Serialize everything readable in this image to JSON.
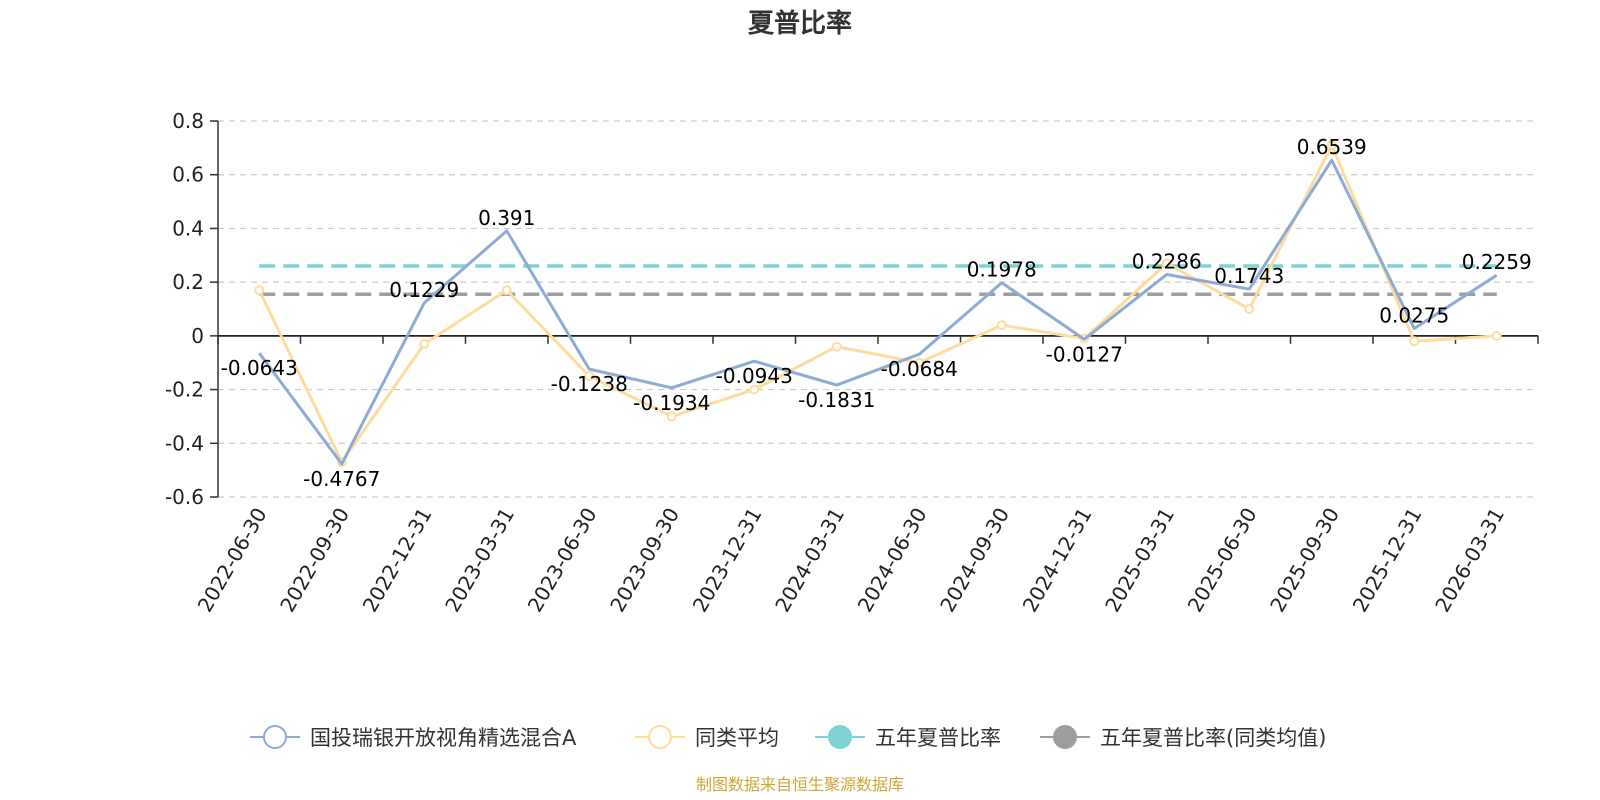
{
  "colors": {
    "fund": "#8eaad6",
    "peer": "#fddc9e",
    "five_year": "#7fd1d6",
    "five_year_peer": "#9e9e9e",
    "source": "#d4a437"
  },
  "legend": [
    {
      "label": "国投瑞银开放视角精选混合A",
      "icon": "hollow-circle-icon",
      "color_key": "fund"
    },
    {
      "label": "同类平均",
      "icon": "hollow-circle-icon",
      "color_key": "peer"
    },
    {
      "label": "五年夏普比率",
      "icon": "filled-circle-icon",
      "color_key": "five_year"
    },
    {
      "label": "五年夏普比率(同类均值)",
      "icon": "filled-circle-icon",
      "color_key": "five_year_peer"
    }
  ],
  "source": "制图数据来自恒生聚源数据库",
  "chart_data": {
    "type": "line",
    "title": "夏普比率",
    "xlabel": "",
    "ylabel": "",
    "categories": [
      "2022-06-30",
      "2022-09-30",
      "2022-12-31",
      "2023-03-31",
      "2023-06-30",
      "2023-09-30",
      "2023-12-31",
      "2024-03-31",
      "2024-06-30",
      "2024-09-30",
      "2024-12-31",
      "2025-03-31",
      "2025-06-30",
      "2025-09-30",
      "2025-12-31",
      "2026-03-31"
    ],
    "ylim": [
      -0.6,
      0.8
    ],
    "yticks": [
      "0.8",
      "0.6",
      "0.4",
      "0.2",
      "0",
      "-0.2",
      "-0.4",
      "-0.6"
    ],
    "grid": true,
    "legend_position": "bottom",
    "series": [
      {
        "name": "国投瑞银开放视角精选混合A",
        "values": [
          -0.0643,
          -0.4767,
          0.1229,
          0.391,
          -0.1238,
          -0.1934,
          -0.0943,
          -0.1831,
          -0.0684,
          0.1978,
          -0.0127,
          0.2286,
          0.1743,
          0.6539,
          0.0275,
          0.2259
        ],
        "labels": [
          "-0.0643",
          "-0.4767",
          "0.1229",
          "0.391",
          "-0.1238",
          "-0.1934",
          "-0.0943",
          "-0.1831",
          "-0.0684",
          "0.1978",
          "-0.0127",
          "0.2286",
          "0.1743",
          "0.6539",
          "0.0275",
          "0.2259"
        ],
        "color_key": "fund"
      },
      {
        "name": "同类平均",
        "values": [
          0.17,
          -0.47,
          -0.03,
          0.17,
          -0.15,
          -0.3,
          -0.2,
          -0.04,
          -0.1,
          0.04,
          -0.01,
          0.27,
          0.1,
          0.71,
          -0.02,
          0.0
        ],
        "color_key": "peer"
      }
    ],
    "reference_lines": [
      {
        "name": "五年夏普比率",
        "value": 0.26,
        "style": "dashed",
        "color_key": "five_year"
      },
      {
        "name": "五年夏普比率(同类均值)",
        "value": 0.155,
        "style": "dashed",
        "color_key": "five_year_peer"
      }
    ]
  }
}
